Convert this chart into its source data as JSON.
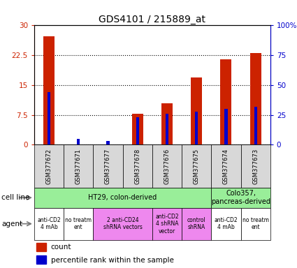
{
  "title": "GDS4101 / 215889_at",
  "samples": [
    "GSM377672",
    "GSM377671",
    "GSM377677",
    "GSM377678",
    "GSM377676",
    "GSM377675",
    "GSM377674",
    "GSM377673"
  ],
  "count_values": [
    27.3,
    0.15,
    0.15,
    7.8,
    10.5,
    17.0,
    21.5,
    23.0
  ],
  "percentile_values": [
    44,
    5,
    3,
    23,
    26,
    28,
    30,
    32
  ],
  "ylim_left": [
    0,
    30
  ],
  "ylim_right": [
    0,
    100
  ],
  "yticks_left": [
    0,
    7.5,
    15,
    22.5,
    30
  ],
  "ytick_labels_left": [
    "0",
    "7.5",
    "15",
    "22.5",
    "30"
  ],
  "yticks_right": [
    0,
    25,
    50,
    75,
    100
  ],
  "ytick_labels_right": [
    "0",
    "25",
    "50",
    "75",
    "100%"
  ],
  "bar_color": "#cc2200",
  "dot_color": "#0000cc",
  "cell_line_groups": [
    {
      "label": "HT29, colon-derived",
      "start": 0,
      "end": 6,
      "color": "#99ee99"
    },
    {
      "label": "Colo357,\npancreas-derived",
      "start": 6,
      "end": 8,
      "color": "#99ee99"
    }
  ],
  "agent_groups": [
    {
      "label": "anti-CD2\n4 mAb",
      "start": 0,
      "end": 1,
      "color": "#ffffff"
    },
    {
      "label": "no treatm\nent",
      "start": 1,
      "end": 2,
      "color": "#ffffff"
    },
    {
      "label": "2 anti-CD24\nshRNA vectors",
      "start": 2,
      "end": 4,
      "color": "#ee88ee"
    },
    {
      "label": "anti-CD2\n4 shRNA\nvector",
      "start": 4,
      "end": 5,
      "color": "#ee88ee"
    },
    {
      "label": "control\nshRNA",
      "start": 5,
      "end": 6,
      "color": "#ee88ee"
    },
    {
      "label": "anti-CD2\n4 mAb",
      "start": 6,
      "end": 7,
      "color": "#ffffff"
    },
    {
      "label": "no treatm\nent",
      "start": 7,
      "end": 8,
      "color": "#ffffff"
    }
  ],
  "cell_line_row_label": "cell line",
  "agent_row_label": "agent",
  "title_fontsize": 10,
  "tick_fontsize": 7.5,
  "label_fontsize": 8
}
